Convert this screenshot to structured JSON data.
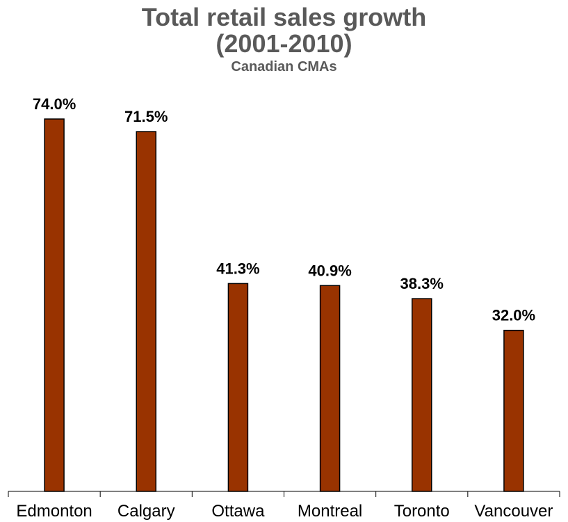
{
  "chart_data": {
    "type": "bar",
    "title_line1": "Total retail sales growth",
    "title_line2": "(2001-2010)",
    "subtitle": "Canadian CMAs",
    "categories": [
      "Edmonton",
      "Calgary",
      "Ottawa",
      "Montreal",
      "Toronto",
      "Vancouver"
    ],
    "values": [
      74.0,
      71.5,
      41.3,
      40.9,
      38.3,
      32.0
    ],
    "data_labels": [
      "74.0%",
      "71.5%",
      "41.3%",
      "40.9%",
      "38.3%",
      "32.0%"
    ],
    "ylim": [
      0,
      100
    ],
    "grid": false,
    "legend": "none",
    "bar_color": "#993300"
  }
}
